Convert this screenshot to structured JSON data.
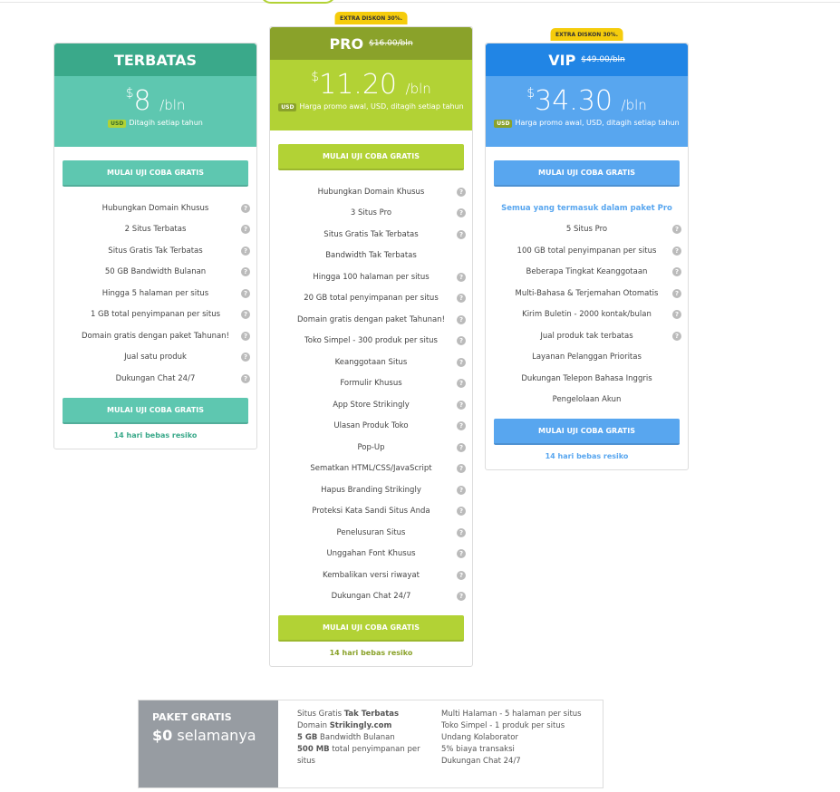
{
  "colors": {
    "terbatas_header": "#3aa98a",
    "terbatas_body": "#5ec7b0",
    "pro_header": "#8aa22a",
    "pro_body": "#b2d235",
    "vip_header": "#2185e5",
    "vip_body": "#58a6ef",
    "badge": "#f5cc0c"
  },
  "plans": [
    {
      "name": "TERBATAS",
      "old_price": "",
      "badge": "",
      "currency": "$",
      "price": "8",
      "per": "/bln",
      "usd": "USD",
      "note": "Ditagih setiap tahun",
      "cta": "MULAI UJI COBA GRATIS",
      "intro": "",
      "features": [
        {
          "t": "Hubungkan Domain Khusus",
          "q": true
        },
        {
          "t": "2 Situs Terbatas",
          "q": true
        },
        {
          "t": "Situs Gratis Tak Terbatas",
          "q": true
        },
        {
          "t": "50 GB Bandwidth Bulanan",
          "q": true
        },
        {
          "t": "Hingga 5 halaman per situs",
          "q": true
        },
        {
          "t": "1 GB total penyimpanan per situs",
          "q": true
        },
        {
          "t": "Domain gratis dengan paket Tahunan!",
          "q": true
        },
        {
          "t": "Jual satu produk",
          "q": true
        },
        {
          "t": "Dukungan Chat 24/7",
          "q": true
        }
      ],
      "risk": "14 hari bebas resiko"
    },
    {
      "name": "PRO",
      "old_price": "$16.00/bln",
      "badge": "EXTRA DISKON 30%.",
      "currency": "$",
      "price": "11.20",
      "per": "/bln",
      "usd": "USD",
      "note": "Harga promo awal, USD, ditagih setiap tahun",
      "cta": "MULAI UJI COBA GRATIS",
      "intro": "",
      "features": [
        {
          "t": "Hubungkan Domain Khusus",
          "q": true
        },
        {
          "t": "3 Situs Pro",
          "q": true
        },
        {
          "t": "Situs Gratis Tak Terbatas",
          "q": true
        },
        {
          "t": "Bandwidth Tak Terbatas",
          "q": false
        },
        {
          "t": "Hingga 100 halaman per situs",
          "q": true
        },
        {
          "t": "20 GB total penyimpanan per situs",
          "q": true
        },
        {
          "t": "Domain gratis dengan paket Tahunan!",
          "q": true
        },
        {
          "t": "Toko Simpel - 300 produk per situs",
          "q": true
        },
        {
          "t": "Keanggotaan Situs",
          "q": true
        },
        {
          "t": "Formulir Khusus",
          "q": true
        },
        {
          "t": "App Store Strikingly",
          "q": true
        },
        {
          "t": "Ulasan Produk Toko",
          "q": true
        },
        {
          "t": "Pop-Up",
          "q": true
        },
        {
          "t": "Sematkan HTML/CSS/JavaScript",
          "q": true
        },
        {
          "t": "Hapus Branding Strikingly",
          "q": true
        },
        {
          "t": "Proteksi Kata Sandi Situs Anda",
          "q": true
        },
        {
          "t": "Penelusuran Situs",
          "q": true
        },
        {
          "t": "Unggahan Font Khusus",
          "q": true
        },
        {
          "t": "Kembalikan versi riwayat",
          "q": true
        },
        {
          "t": "Dukungan Chat 24/7",
          "q": true
        }
      ],
      "risk": "14 hari bebas resiko"
    },
    {
      "name": "VIP",
      "old_price": "$49.00/bln",
      "badge": "EXTRA DISKON 30%.",
      "currency": "$",
      "price": "34.30",
      "per": "/bln",
      "usd": "USD",
      "note": "Harga promo awal, USD, ditagih setiap tahun",
      "cta": "MULAI UJI COBA GRATIS",
      "intro": "Semua yang termasuk dalam paket Pro",
      "features": [
        {
          "t": "5 Situs Pro",
          "q": true
        },
        {
          "t": "100 GB total penyimpanan per situs",
          "q": true
        },
        {
          "t": "Beberapa Tingkat Keanggotaan",
          "q": true
        },
        {
          "t": "Multi-Bahasa & Terjemahan Otomatis",
          "q": true
        },
        {
          "t": "Kirim Buletin - 2000 kontak/bulan",
          "q": true
        },
        {
          "t": "Jual produk tak terbatas",
          "q": true
        },
        {
          "t": "Layanan Pelanggan Prioritas",
          "q": false
        },
        {
          "t": "Dukungan Telepon Bahasa Inggris",
          "q": false
        },
        {
          "t": "Pengelolaan Akun",
          "q": false
        }
      ],
      "risk": "14 hari bebas resiko"
    }
  ],
  "free": {
    "title": "PAKET GRATIS",
    "price": "$0",
    "price_suffix": " selamanya",
    "col1": [
      {
        "a": "Situs Gratis ",
        "b": "Tak Terbatas",
        "bfirst": false
      },
      {
        "a": "Domain ",
        "b": "Strikingly.com",
        "bfirst": false
      },
      {
        "b": "5 GB",
        "a": " Bandwidth Bulanan",
        "bfirst": true
      },
      {
        "b": "500 MB",
        "a": " total penyimpanan per situs",
        "bfirst": true
      }
    ],
    "col2": [
      "Multi Halaman - 5 halaman per situs",
      "Toko Simpel - 1 produk per situs",
      "Undang Kolaborator",
      "5% biaya transaksi",
      "Dukungan Chat 24/7"
    ]
  }
}
